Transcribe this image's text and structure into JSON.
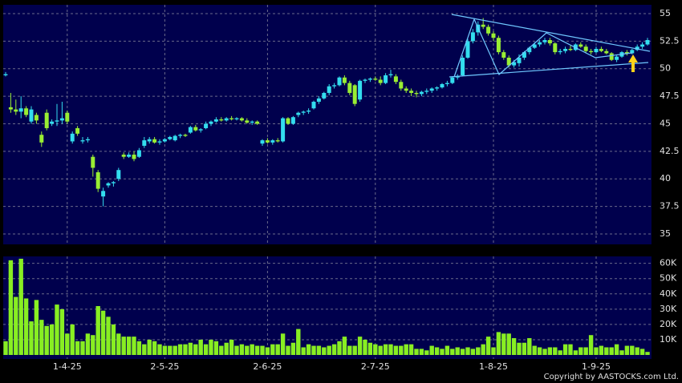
{
  "chart_data": [
    {
      "type": "candlestick",
      "up_color": "#33ddee",
      "down_color": "#99ee33",
      "grid": true,
      "ylim": [
        34.05,
        55.8
      ],
      "yticks": [
        35,
        37.5,
        40,
        42.5,
        45,
        47.5,
        50,
        52.5,
        55
      ],
      "ohlc": [
        [
          49.4,
          49.7,
          49.3,
          49.5
        ],
        [
          46.5,
          47.8,
          46.0,
          46.3
        ],
        [
          46.3,
          47.2,
          45.8,
          46.1
        ],
        [
          46.1,
          47.5,
          45.5,
          46.4
        ],
        [
          46.4,
          46.6,
          45.6,
          45.8
        ],
        [
          45.2,
          46.6,
          45.0,
          46.3
        ],
        [
          45.8,
          46.0,
          45.0,
          45.3
        ],
        [
          44.0,
          44.3,
          42.9,
          43.3
        ],
        [
          46.0,
          46.3,
          44.4,
          44.6
        ],
        [
          45.0,
          45.4,
          44.8,
          45.2
        ],
        [
          45.2,
          46.8,
          44.8,
          45.3
        ],
        [
          45.3,
          47.0,
          45.0,
          45.5
        ],
        [
          46.0,
          46.2,
          45.0,
          45.2
        ],
        [
          43.4,
          44.3,
          43.2,
          44.1
        ],
        [
          44.6,
          44.8,
          43.9,
          44.1
        ],
        [
          43.4,
          43.8,
          43.2,
          43.5
        ],
        [
          43.5,
          43.8,
          43.3,
          43.6
        ],
        [
          42.0,
          42.2,
          40.2,
          41.0
        ],
        [
          40.6,
          40.8,
          38.8,
          39.1
        ],
        [
          38.4,
          39.2,
          37.5,
          38.9
        ],
        [
          39.4,
          39.7,
          39.2,
          39.6
        ],
        [
          39.6,
          39.8,
          39.3,
          39.7
        ],
        [
          40.0,
          41.0,
          39.8,
          40.8
        ],
        [
          42.2,
          42.4,
          41.8,
          42.0
        ],
        [
          42.0,
          42.4,
          41.9,
          42.2
        ],
        [
          42.2,
          42.5,
          41.6,
          41.8
        ],
        [
          42.0,
          42.8,
          41.9,
          42.6
        ],
        [
          43.0,
          43.8,
          42.8,
          43.5
        ],
        [
          43.4,
          43.8,
          43.2,
          43.6
        ],
        [
          43.6,
          43.8,
          43.2,
          43.3
        ],
        [
          43.3,
          43.6,
          43.1,
          43.4
        ],
        [
          43.4,
          43.7,
          43.3,
          43.6
        ],
        [
          43.6,
          43.9,
          43.5,
          43.8
        ],
        [
          43.5,
          44.0,
          43.4,
          43.9
        ],
        [
          43.9,
          44.1,
          43.7,
          44.0
        ],
        [
          44.0,
          44.1,
          43.8,
          43.9
        ],
        [
          44.2,
          44.8,
          44.1,
          44.7
        ],
        [
          44.7,
          44.9,
          44.3,
          44.4
        ],
        [
          44.4,
          44.6,
          44.2,
          44.5
        ],
        [
          44.6,
          45.2,
          44.5,
          45.0
        ],
        [
          45.0,
          45.3,
          44.8,
          45.2
        ],
        [
          45.2,
          45.6,
          45.1,
          45.4
        ],
        [
          45.4,
          45.6,
          45.2,
          45.3
        ],
        [
          45.3,
          45.6,
          45.2,
          45.5
        ],
        [
          45.5,
          45.7,
          45.3,
          45.4
        ],
        [
          45.4,
          45.6,
          45.3,
          45.5
        ],
        [
          45.5,
          45.6,
          45.2,
          45.3
        ],
        [
          45.3,
          45.5,
          45.0,
          45.1
        ],
        [
          45.1,
          45.3,
          44.9,
          45.2
        ],
        [
          45.2,
          45.3,
          44.9,
          45.0
        ],
        [
          43.2,
          43.6,
          43.0,
          43.5
        ],
        [
          43.5,
          43.7,
          43.2,
          43.3
        ],
        [
          43.3,
          43.6,
          43.1,
          43.5
        ],
        [
          43.5,
          43.7,
          43.3,
          43.4
        ],
        [
          43.4,
          45.6,
          43.3,
          45.5
        ],
        [
          45.5,
          45.6,
          44.9,
          45.0
        ],
        [
          45.0,
          45.7,
          44.9,
          45.6
        ],
        [
          45.8,
          46.1,
          45.6,
          46.0
        ],
        [
          46.0,
          46.2,
          45.8,
          46.1
        ],
        [
          46.1,
          46.4,
          45.9,
          46.2
        ],
        [
          46.4,
          47.1,
          46.3,
          47.0
        ],
        [
          47.0,
          47.5,
          46.8,
          47.3
        ],
        [
          47.3,
          47.9,
          47.2,
          47.8
        ],
        [
          47.8,
          48.6,
          47.6,
          48.4
        ],
        [
          48.4,
          48.7,
          48.2,
          48.5
        ],
        [
          48.5,
          49.3,
          48.4,
          49.2
        ],
        [
          49.2,
          49.4,
          48.5,
          48.7
        ],
        [
          48.7,
          48.9,
          47.6,
          47.8
        ],
        [
          48.5,
          48.6,
          46.6,
          46.8
        ],
        [
          47.2,
          49.0,
          47.0,
          48.9
        ],
        [
          48.9,
          49.1,
          48.7,
          49.0
        ],
        [
          49.0,
          49.2,
          48.8,
          49.1
        ],
        [
          49.1,
          49.3,
          48.9,
          49.0
        ],
        [
          49.0,
          49.3,
          48.5,
          48.7
        ],
        [
          48.7,
          49.6,
          48.6,
          49.4
        ],
        [
          49.4,
          49.9,
          49.2,
          49.5
        ],
        [
          49.3,
          49.5,
          48.6,
          48.8
        ],
        [
          48.8,
          49.0,
          48.0,
          48.2
        ],
        [
          48.2,
          48.4,
          47.8,
          48.0
        ],
        [
          48.0,
          48.2,
          47.5,
          47.8
        ],
        [
          47.8,
          48.0,
          47.4,
          47.7
        ],
        [
          47.7,
          48.0,
          47.5,
          47.9
        ],
        [
          47.9,
          48.2,
          47.7,
          48.0
        ],
        [
          48.0,
          48.3,
          47.8,
          48.2
        ],
        [
          48.2,
          48.4,
          48.0,
          48.3
        ],
        [
          48.3,
          48.7,
          48.2,
          48.6
        ],
        [
          48.6,
          48.9,
          48.4,
          48.7
        ],
        [
          48.7,
          49.3,
          48.6,
          49.2
        ],
        [
          49.2,
          49.5,
          49.0,
          49.3
        ],
        [
          49.4,
          51.2,
          49.3,
          51.0
        ],
        [
          51.0,
          52.7,
          50.9,
          52.5
        ],
        [
          52.5,
          53.6,
          52.3,
          53.3
        ],
        [
          53.3,
          54.3,
          53.0,
          54.0
        ],
        [
          54.0,
          54.6,
          53.6,
          53.8
        ],
        [
          53.8,
          54.0,
          53.0,
          53.2
        ],
        [
          53.2,
          53.4,
          52.5,
          52.8
        ],
        [
          52.8,
          53.0,
          51.3,
          51.5
        ],
        [
          51.5,
          51.7,
          50.8,
          51.0
        ],
        [
          51.0,
          51.2,
          50.1,
          50.3
        ],
        [
          50.3,
          50.8,
          50.1,
          50.6
        ],
        [
          50.5,
          51.3,
          50.2,
          51.0
        ],
        [
          51.0,
          51.6,
          50.8,
          51.5
        ],
        [
          51.5,
          52.0,
          51.3,
          51.9
        ],
        [
          51.9,
          52.4,
          51.8,
          52.2
        ],
        [
          52.2,
          52.6,
          52.0,
          52.4
        ],
        [
          52.4,
          52.8,
          52.2,
          52.6
        ],
        [
          52.6,
          52.8,
          52.1,
          52.3
        ],
        [
          52.3,
          52.4,
          51.3,
          51.5
        ],
        [
          51.5,
          51.8,
          51.3,
          51.6
        ],
        [
          51.6,
          52.0,
          51.4,
          51.8
        ],
        [
          51.8,
          52.1,
          51.6,
          51.7
        ],
        [
          51.7,
          52.3,
          51.6,
          52.2
        ],
        [
          52.2,
          52.4,
          51.9,
          52.0
        ],
        [
          52.0,
          52.2,
          51.4,
          51.6
        ],
        [
          51.6,
          51.8,
          51.3,
          51.5
        ],
        [
          51.5,
          52.0,
          51.4,
          51.8
        ],
        [
          51.8,
          52.0,
          51.5,
          51.6
        ],
        [
          51.6,
          51.8,
          51.3,
          51.4
        ],
        [
          51.4,
          51.5,
          50.7,
          50.8
        ],
        [
          50.8,
          51.2,
          50.6,
          51.1
        ],
        [
          51.1,
          51.6,
          51.0,
          51.5
        ],
        [
          51.5,
          51.7,
          51.2,
          51.4
        ],
        [
          51.4,
          51.8,
          51.3,
          51.7
        ],
        [
          51.7,
          52.2,
          51.6,
          52.0
        ],
        [
          52.0,
          52.4,
          51.8,
          52.2
        ],
        [
          52.2,
          52.8,
          52.1,
          52.6
        ]
      ]
    },
    {
      "type": "bar",
      "color": "#88ee22",
      "grid": true,
      "ylim": [
        0,
        64000
      ],
      "yticks": [
        {
          "value": 10000,
          "label": "10K"
        },
        {
          "value": 20000,
          "label": "20K"
        },
        {
          "value": 30000,
          "label": "30K"
        },
        {
          "value": 40000,
          "label": "40K"
        },
        {
          "value": 50000,
          "label": "50K"
        },
        {
          "value": 60000,
          "label": "60K"
        }
      ],
      "categories": [
        null,
        null,
        null,
        null,
        null,
        null,
        null,
        null,
        null,
        null,
        null,
        null,
        "1-4-25",
        null,
        null,
        null,
        null,
        null,
        null,
        null,
        null,
        null,
        null,
        null,
        null,
        null,
        null,
        null,
        null,
        null,
        null,
        "2-5-25",
        null,
        null,
        null,
        null,
        null,
        null,
        null,
        null,
        null,
        null,
        null,
        null,
        null,
        null,
        null,
        null,
        null,
        null,
        null,
        "2-6-25",
        null,
        null,
        null,
        null,
        null,
        null,
        null,
        null,
        null,
        null,
        null,
        null,
        null,
        null,
        null,
        null,
        null,
        null,
        null,
        null,
        "2-7-25",
        null,
        null,
        null,
        null,
        null,
        null,
        null,
        null,
        null,
        null,
        null,
        null,
        null,
        null,
        null,
        null,
        null,
        null,
        null,
        null,
        null,
        null,
        "1-8-25",
        null,
        null,
        null,
        null,
        null,
        null,
        null,
        null,
        null,
        null,
        null,
        null,
        null,
        null,
        null,
        null,
        null,
        null,
        null,
        "1-9-25",
        null,
        null,
        null,
        null,
        null,
        null,
        null,
        null,
        null,
        null
      ],
      "values": [
        9000,
        62000,
        38000,
        63000,
        37000,
        22000,
        36000,
        23000,
        19000,
        20000,
        33000,
        30000,
        14000,
        20000,
        9000,
        9000,
        14000,
        13000,
        32000,
        29000,
        25000,
        20000,
        14000,
        12000,
        12000,
        12000,
        9000,
        7000,
        10000,
        9000,
        7000,
        6000,
        6000,
        6000,
        7000,
        7000,
        8000,
        7000,
        10000,
        7000,
        10000,
        9000,
        6000,
        8000,
        10000,
        6000,
        7000,
        6000,
        7000,
        6000,
        6000,
        5000,
        7000,
        7000,
        14000,
        6000,
        8000,
        17000,
        5000,
        7000,
        6000,
        6000,
        5000,
        6000,
        7000,
        9000,
        12000,
        6000,
        6000,
        12000,
        10000,
        8000,
        7000,
        6000,
        7000,
        7000,
        6000,
        6000,
        7000,
        7000,
        4000,
        4000,
        3000,
        6000,
        5000,
        4000,
        6000,
        4000,
        5000,
        4000,
        5000,
        4000,
        5000,
        7000,
        12000,
        5000,
        15000,
        14000,
        14000,
        11000,
        8000,
        8000,
        11000,
        6000,
        5000,
        4000,
        5000,
        5000,
        3000,
        7000,
        7000,
        3000,
        5000,
        5000,
        13000,
        5000,
        6000,
        5000,
        5000,
        7000,
        3000,
        6000,
        6000,
        5000,
        4000,
        2000
      ]
    }
  ],
  "copyright": "Copyright by AASTOCKS.com Ltd."
}
